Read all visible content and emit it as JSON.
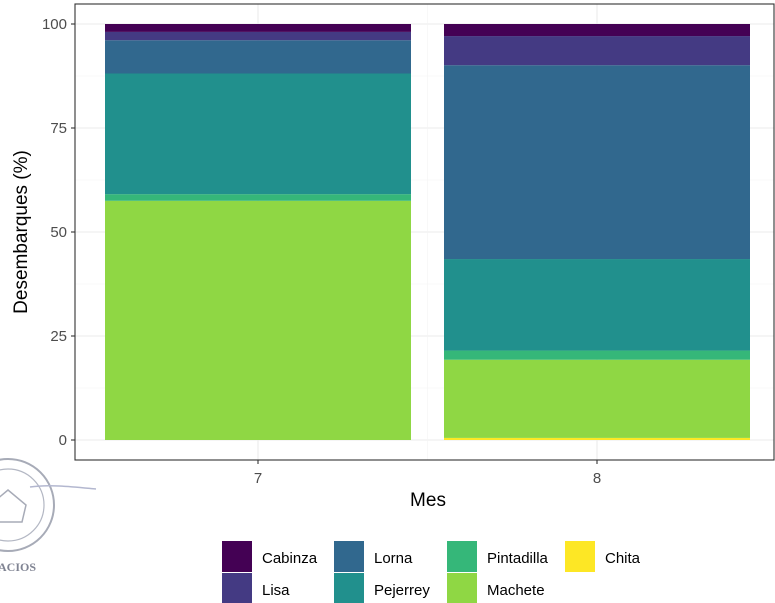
{
  "chart_data": {
    "type": "bar",
    "stacked": true,
    "title": "",
    "xlabel": "Mes",
    "ylabel": "Desembarques (%)",
    "categories": [
      "7",
      "8"
    ],
    "ylim": [
      0,
      100
    ],
    "yticks": [
      0,
      25,
      50,
      75,
      100
    ],
    "ytick_labels": [
      "0",
      "25",
      "50",
      "75",
      "100"
    ],
    "grid": true,
    "legend_position": "bottom",
    "series": [
      {
        "name": "Chita",
        "color": "#fde725",
        "values": [
          0,
          0.5
        ]
      },
      {
        "name": "Machete",
        "color": "#8fd744",
        "values": [
          57.5,
          18.8
        ]
      },
      {
        "name": "Pintadilla",
        "color": "#35b779",
        "values": [
          1.6,
          2.2
        ]
      },
      {
        "name": "Pejerrey",
        "color": "#21908d",
        "values": [
          29.0,
          22.0
        ]
      },
      {
        "name": "Lorna",
        "color": "#31688e",
        "values": [
          8.0,
          46.6
        ]
      },
      {
        "name": "Lisa",
        "color": "#443a83",
        "values": [
          2.0,
          7.0
        ]
      },
      {
        "name": "Cabinza",
        "color": "#440154",
        "values": [
          1.9,
          2.9
        ]
      }
    ],
    "legend_order": [
      "Cabinza",
      "Lisa",
      "Lorna",
      "Pejerrey",
      "Pintadilla",
      "Machete",
      "Chita"
    ]
  },
  "seal": {
    "text": "ACIOS"
  }
}
